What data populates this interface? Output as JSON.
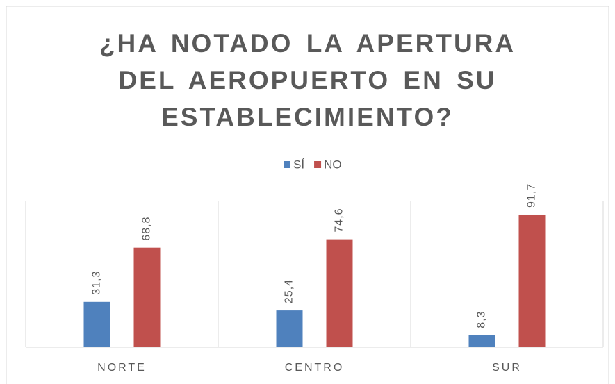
{
  "chart_data": {
    "type": "bar",
    "title": "¿HA NOTADO LA APERTURA DEL AEROPUERTO EN SU ESTABLECIMIENTO?",
    "categories": [
      "NORTE",
      "CENTRO",
      "SUR"
    ],
    "series": [
      {
        "name": "SÍ",
        "color": "#4f81bd",
        "values": [
          31.3,
          25.4,
          8.3
        ],
        "value_labels": [
          "31,3",
          "25,4",
          "8,3"
        ]
      },
      {
        "name": "NO",
        "color": "#c0504d",
        "values": [
          68.8,
          74.6,
          91.7
        ],
        "value_labels": [
          "68,8",
          "74,6",
          "91,7"
        ]
      }
    ],
    "legend": "top"
  }
}
